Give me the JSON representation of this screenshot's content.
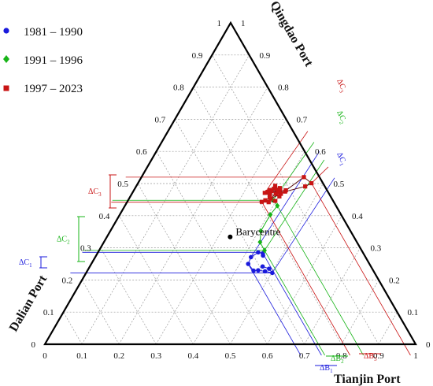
{
  "chart_data": {
    "type": "scatter",
    "subtype": "ternary",
    "axes": {
      "a": {
        "label": "Qingdao Port",
        "ticks": [
          "0",
          "0.1",
          "0.2",
          "0.3",
          "0.4",
          "0.5",
          "0.6",
          "0.7",
          "0.8",
          "0.9",
          "1"
        ]
      },
      "b": {
        "label": "Tianjin Port",
        "ticks": [
          "0",
          "0.1",
          "0.2",
          "0.3",
          "0.4",
          "0.5",
          "0.6",
          "0.7",
          "0.8",
          "0.9",
          "1"
        ]
      },
      "c": {
        "label": "Dalian Port",
        "ticks": [
          "0",
          "0.1",
          "0.2",
          "0.3",
          "0.4",
          "0.5",
          "0.6",
          "0.7",
          "0.8",
          "0.9",
          "1"
        ]
      },
      "right_side_ticks": [
        "0",
        "0.1",
        "0.2",
        "0.3",
        "0.4",
        "0.5",
        "0.6",
        "0.7",
        "0.8",
        "0.9",
        "1"
      ]
    },
    "grid": true,
    "legend_position": "top-left",
    "barycentre": {
      "label": "Barycentre",
      "a": 0.333,
      "b": 0.333,
      "c": 0.333
    },
    "series": [
      {
        "name": "1981 – 1990",
        "marker": "circle",
        "color": "#1a1adc",
        "points": [
          [
            0.276,
            0.45,
            0.274
          ],
          [
            0.283,
            0.446,
            0.271
          ],
          [
            0.286,
            0.432,
            0.282
          ],
          [
            0.271,
            0.42,
            0.309
          ],
          [
            0.25,
            0.423,
            0.327
          ],
          [
            0.229,
            0.448,
            0.323
          ],
          [
            0.23,
            0.46,
            0.31
          ],
          [
            0.227,
            0.48,
            0.293
          ],
          [
            0.222,
            0.502,
            0.276
          ],
          [
            0.235,
            0.487,
            0.278
          ],
          [
            0.242,
            0.466,
            0.292
          ]
        ]
      },
      {
        "name": "1991 – 1996",
        "marker": "diamond",
        "color": "#18b418",
        "points": [
          [
            0.292,
            0.446,
            0.262
          ],
          [
            0.318,
            0.421,
            0.261
          ],
          [
            0.352,
            0.406,
            0.242
          ],
          [
            0.403,
            0.406,
            0.191
          ],
          [
            0.431,
            0.411,
            0.158
          ],
          [
            0.448,
            0.391,
            0.161
          ]
        ]
      },
      {
        "name": "1997 – 2023",
        "marker": "square",
        "color": "#c81414",
        "points": [
          [
            0.446,
            0.398,
            0.156
          ],
          [
            0.442,
            0.382,
            0.176
          ],
          [
            0.443,
            0.363,
            0.194
          ],
          [
            0.448,
            0.37,
            0.182
          ],
          [
            0.456,
            0.378,
            0.166
          ],
          [
            0.463,
            0.374,
            0.163
          ],
          [
            0.471,
            0.357,
            0.172
          ],
          [
            0.474,
            0.363,
            0.163
          ],
          [
            0.48,
            0.366,
            0.154
          ],
          [
            0.484,
            0.375,
            0.141
          ],
          [
            0.493,
            0.374,
            0.133
          ],
          [
            0.481,
            0.386,
            0.133
          ],
          [
            0.468,
            0.388,
            0.144
          ],
          [
            0.474,
            0.394,
            0.132
          ],
          [
            0.479,
            0.41,
            0.111
          ],
          [
            0.52,
            0.438,
            0.042
          ],
          [
            0.501,
            0.468,
            0.031
          ],
          [
            0.491,
            0.456,
            0.053
          ],
          [
            0.475,
            0.41,
            0.115
          ],
          [
            0.453,
            0.382,
            0.165
          ],
          [
            0.482,
            0.393,
            0.125
          ],
          [
            0.473,
            0.394,
            0.133
          ],
          [
            0.477,
            0.372,
            0.151
          ],
          [
            0.486,
            0.39,
            0.124
          ],
          [
            0.466,
            0.373,
            0.161
          ],
          [
            0.46,
            0.402,
            0.138
          ],
          [
            0.468,
            0.402,
            0.13
          ]
        ]
      }
    ],
    "annotations": {
      "delta_a": [
        {
          "label": "ΔC",
          "sub": "1",
          "color": "#1a1adc",
          "range": [
            0.405,
            0.54
          ]
        },
        {
          "label": "ΔC",
          "sub": "2",
          "color": "#18b418",
          "range": [
            0.405,
            0.54
          ]
        },
        {
          "label": "ΔC",
          "sub": "3",
          "color": "#c81414",
          "range": [
            0.405,
            0.54
          ]
        }
      ],
      "delta_c": [
        {
          "label": "ΔC",
          "sub": "1",
          "color": "#1a1adc",
          "range": [
            0.26,
            0.33
          ]
        },
        {
          "label": "ΔC",
          "sub": "2",
          "color": "#18b418",
          "range": [
            0.15,
            0.3
          ]
        },
        {
          "label": "ΔC",
          "sub": "3",
          "color": "#c81414",
          "range": [
            0.03,
            0.2
          ]
        }
      ],
      "delta_b": [
        {
          "label": "ΔB",
          "sub": "1",
          "color": "#1a1adc",
          "range": [
            0.415,
            0.49
          ]
        },
        {
          "label": "ΔB",
          "sub": "2",
          "color": "#18b418",
          "range": [
            0.4,
            0.47
          ]
        },
        {
          "label": "ΔB",
          "sub": "3",
          "color": "#c81414",
          "range": [
            0.32,
            0.5
          ]
        }
      ]
    }
  }
}
